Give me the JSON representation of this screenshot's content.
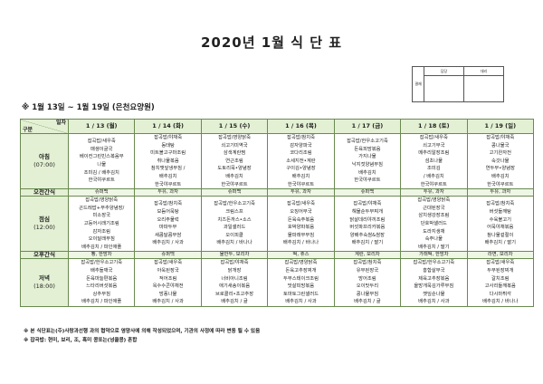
{
  "title": "2020년 1월 식 단 표",
  "approval": {
    "label": "결재",
    "col1": "담당",
    "col2": "대리"
  },
  "subtitle": "※ 1월 13일 ~ 1월 19일 (은천요양원)",
  "corner": {
    "top": "일자",
    "bottom": "구분"
  },
  "days": [
    "1 / 13 (월)",
    "1 / 14 (화)",
    "1 / 15 (수)",
    "1 / 16 (목)",
    "1 / 17 (금)",
    "1 / 18 (토)",
    "1 / 19 (일)"
  ],
  "meals": [
    {
      "label": "아침",
      "time": "(07:00)",
      "type": "meal",
      "cells": [
        [
          "잡곡밥/새우죽",
          "매생이굴국",
          "베이컨그린빈스볶음무",
          "나물",
          "조미김 / 배추김치",
          "한국야쿠르트"
        ],
        [
          "잡곡밥/야채죽",
          "동태탕",
          "미트볼고구마조림",
          "취나물볶음",
          "참치깻잎냉무침 /",
          "배추김치",
          "한국야쿠르트"
        ],
        [
          "잡곡밥/영양닭죽",
          "쇠고기미역국",
          "삼색계란찜",
          "연근조림",
          "도토리묵•양념장",
          "배추김치",
          "한국야쿠르트"
        ],
        [
          "잡곡밥/참치죽",
          "감자양파국",
          "코다리조림",
          "소세지전•계란",
          "구이김•양념장",
          "배추김치",
          "한국야쿠르트"
        ],
        [
          "잡곡밥/한우소고기죽",
          "돈육피망볶음",
          "가지나물",
          "낙지젓양념무침",
          "배추김치",
          "한국야쿠르트"
        ],
        [
          "잡곡밥/새우죽",
          "쇠고기무국",
          "메추리알장조림",
          "섬초나물",
          "조미김",
          "/ 배추김치",
          "한국야쿠르트"
        ],
        [
          "잡곡밥/야채죽",
          "콩나물국",
          "고기완자전",
          "숙갓나물",
          "연두부•양념장",
          "배추김치",
          "한국야쿠르트"
        ]
      ]
    },
    {
      "label": "오전간식",
      "type": "snack",
      "cells": [
        [
          "슈퍼백"
        ],
        [
          "두유, 과자"
        ],
        [
          "슈퍼백"
        ],
        [
          "두유, 과자"
        ],
        [
          "슈퍼백"
        ],
        [
          "두유, 과자"
        ],
        [
          "두유, 과자"
        ]
      ]
    },
    {
      "label": "점심",
      "time": "(12:00)",
      "type": "meal",
      "cells": [
        [
          "잡곡밥/영양닭죽",
          "곤드레밥+부추양념장/",
          "미소장국",
          "고등어시래기조림",
          "감자조림",
          "오이달래무침",
          "배추김치 / 파인애플"
        ],
        [
          "잡곡밥/참치죽",
          "모듬어묵탕",
          "오리주물럭",
          "마파두부",
          "새콤달콤무쌈",
          "배추김치 / 사과"
        ],
        [
          "잡곡밥/한우소고기죽",
          "크림스프",
          "치즈돈까스•소스",
          "과일샐러드",
          "오이피클",
          "배추김치 / 바나나"
        ],
        [
          "잡곡밥/새우죽",
          "오징어무국",
          "돈육숙주볶음",
          "호박양파볶음",
          "물파래무무침",
          "배추김치 / 바나나"
        ],
        [
          "잡곡밥/야채죽",
          "해물순두부찌개",
          "닭살데리야끼조림",
          "버섯파프리카볶음",
          "양배추숙쌈&쌈장",
          "배추김치 / 딸기"
        ],
        [
          "잡곡밥/영양닭죽",
          "근대된장국",
          "삼치생강장조림",
          "단호박샐러드",
          "도라지생채",
          "숙주나물",
          "배추김치 / 딸기"
        ],
        [
          "잡곡밥/참치죽",
          "버섯들깨탕",
          "수육불고기",
          "어묵야채볶음",
          "참나물겉절이",
          "배추김치 / 딸기"
        ]
      ]
    },
    {
      "label": "오후간식",
      "type": "snack",
      "cells": [
        [
          "빵, 한방차"
        ],
        [
          "슈퍼백"
        ],
        [
          "물만두, 보리차"
        ],
        [
          "떡, 쥬스"
        ],
        [
          "계란, 보리차"
        ],
        [
          "가래떡, 한방차"
        ],
        [
          "라면, 보리차"
        ]
      ]
    },
    {
      "label": "저녁",
      "time": "(18:00)",
      "type": "meal",
      "cells": [
        [
          "잡곡밥/한우소고기죽",
          "배추들깨국",
          "돈육마늘편볶음",
          "느타리버섯볶음",
          "상추무침",
          "배추김치 / 파인애플"
        ],
        [
          "잡곡밥/새우죽",
          "아욱된장국",
          "적어조림",
          "옥수수콘야채전",
          "방풍나물",
          "배추김치 / 사과"
        ],
        [
          "잡곡밥/야채죽",
          "닭개장",
          "너비아니조림",
          "애기새송이볶음",
          "브로콜리•초고추장",
          "배추김치 / 귤"
        ],
        [
          "잡곡밥/영양닭죽",
          "돈육고추장찌개",
          "두부스테이크조림",
          "맛살피망볶음",
          "토마토그린샐러드",
          "배추김치 / 사과"
        ],
        [
          "잡곡밥/참치죽",
          "유부된장국",
          "방어조림",
          "오이맛두리",
          "콩나물무침",
          "배추김치 / 귤"
        ],
        [
          "잡곡밥/한우소고기죽",
          "홍합살무국",
          "제육고추장볶음",
          "올방개묵김가루무침",
          "깻잎순나물",
          "배추김치 / 사과"
        ],
        [
          "잡곡밥/새우죽",
          "두부된장찌개",
          "갈치조림",
          "고사리들깨볶음",
          "다시마튀각",
          "배추김치 / 바나나"
        ]
      ]
    }
  ],
  "notes": [
    "※ 본 식단표는(주)사랑과선행 과의 협약으로 영양사에 의해 작성되었으며, 기관의 사정에 따라 변동 될 수 있음",
    "※ 잡곡밥: 현미, 보리, 조, 흑미 콩또는(넝쿨콩) 혼합"
  ]
}
